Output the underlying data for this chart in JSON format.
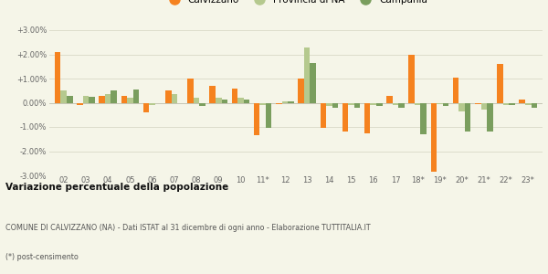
{
  "years": [
    "02",
    "03",
    "04",
    "05",
    "06",
    "07",
    "08",
    "09",
    "10",
    "11*",
    "12",
    "13",
    "14",
    "15",
    "16",
    "17",
    "18*",
    "19*",
    "20*",
    "21*",
    "22*",
    "23*"
  ],
  "calvizzano": [
    2.1,
    -0.1,
    0.3,
    0.3,
    -0.4,
    0.5,
    1.0,
    0.7,
    0.6,
    -1.35,
    -0.05,
    1.0,
    -1.05,
    -1.2,
    -1.25,
    0.3,
    2.0,
    -2.85,
    1.05,
    -0.05,
    1.6,
    0.15
  ],
  "provincia_na": [
    0.5,
    0.3,
    0.35,
    0.2,
    -0.1,
    0.35,
    0.2,
    0.2,
    0.2,
    -0.1,
    0.05,
    2.3,
    -0.15,
    -0.1,
    -0.1,
    -0.1,
    -0.1,
    -0.05,
    -0.35,
    -0.3,
    -0.1,
    -0.1
  ],
  "campania": [
    0.3,
    0.25,
    0.5,
    0.55,
    0.0,
    0.0,
    -0.15,
    0.15,
    0.15,
    -1.05,
    0.05,
    1.65,
    -0.2,
    -0.2,
    -0.15,
    -0.2,
    -1.3,
    -0.15,
    -1.2,
    -1.2,
    -0.1,
    -0.2
  ],
  "color_calvizzano": "#f5821f",
  "color_provincia": "#b5c98e",
  "color_campania": "#7a9e5e",
  "title_bold": "Variazione percentuale della popolazione",
  "subtitle": "COMUNE DI CALVIZZANO (NA) - Dati ISTAT al 31 dicembre di ogni anno - Elaborazione TUTTITALIA.IT",
  "footnote": "(*) post-censimento",
  "ylim_min": -3.0,
  "ylim_max": 3.0,
  "yticks": [
    -3.0,
    -2.0,
    -1.0,
    0.0,
    1.0,
    2.0,
    3.0
  ],
  "background_color": "#f5f5e8",
  "grid_color": "#ddddcc"
}
